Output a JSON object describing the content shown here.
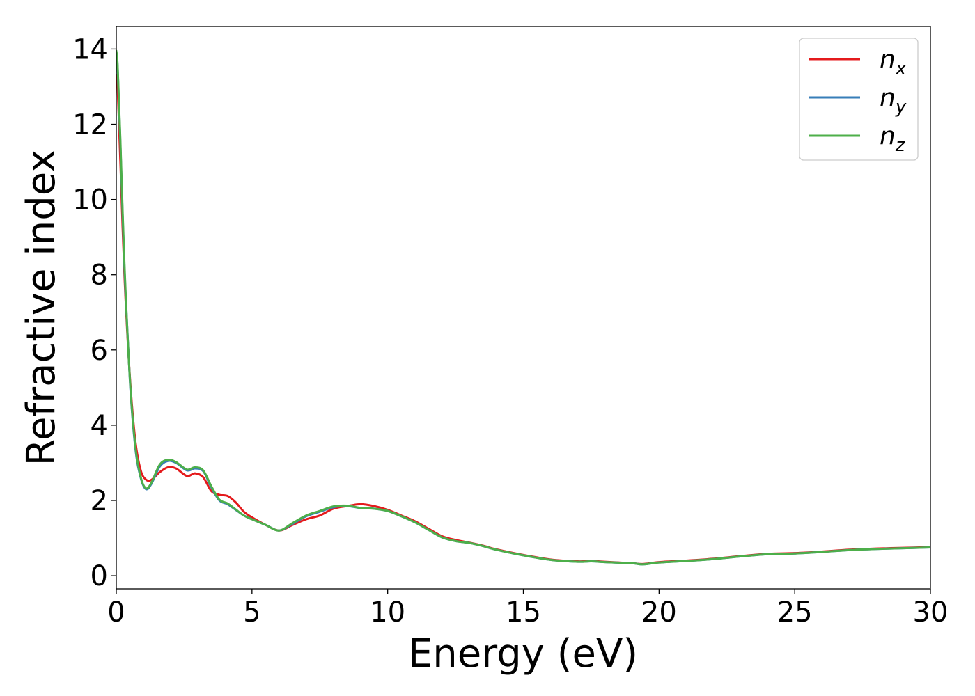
{
  "chart_data": {
    "type": "line",
    "title": "",
    "xlabel": "Energy (eV)",
    "ylabel": "Refractive index",
    "xlim": [
      0,
      30
    ],
    "ylim": [
      -0.35,
      14.6
    ],
    "x_ticks": [
      0,
      5,
      10,
      15,
      20,
      25,
      30
    ],
    "y_ticks": [
      0,
      2,
      4,
      6,
      8,
      10,
      12,
      14
    ],
    "grid": false,
    "legend_position": "top-right",
    "series": [
      {
        "name": "n",
        "subscript": "x",
        "color": "#e41a1c",
        "x": [
          0,
          0.05,
          0.15,
          0.3,
          0.5,
          0.7,
          0.9,
          1.1,
          1.3,
          1.6,
          1.9,
          2.2,
          2.6,
          2.9,
          3.2,
          3.5,
          3.8,
          4.1,
          4.4,
          4.7,
          5,
          5.5,
          6,
          6.5,
          7,
          7.5,
          8,
          8.5,
          9,
          9.5,
          10,
          10.5,
          11,
          11.5,
          12,
          12.5,
          13,
          13.5,
          14,
          15,
          16,
          17,
          17.5,
          18,
          19,
          19.4,
          20,
          21,
          22,
          23,
          24,
          25,
          26,
          27,
          28,
          29,
          30
        ],
        "y": [
          13.3,
          13.0,
          11.0,
          8.0,
          5.3,
          3.6,
          2.8,
          2.55,
          2.55,
          2.75,
          2.88,
          2.85,
          2.65,
          2.72,
          2.62,
          2.25,
          2.15,
          2.12,
          1.95,
          1.7,
          1.55,
          1.35,
          1.2,
          1.35,
          1.5,
          1.6,
          1.78,
          1.85,
          1.9,
          1.85,
          1.75,
          1.6,
          1.45,
          1.25,
          1.05,
          0.95,
          0.88,
          0.8,
          0.7,
          0.55,
          0.43,
          0.38,
          0.39,
          0.37,
          0.33,
          0.31,
          0.36,
          0.4,
          0.45,
          0.52,
          0.58,
          0.6,
          0.64,
          0.69,
          0.72,
          0.74,
          0.76
        ]
      },
      {
        "name": "n",
        "subscript": "y",
        "color": "#377eb8",
        "x": [
          0,
          0.05,
          0.15,
          0.3,
          0.5,
          0.7,
          0.9,
          1.1,
          1.3,
          1.6,
          1.9,
          2.2,
          2.6,
          2.9,
          3.2,
          3.5,
          3.8,
          4.1,
          4.4,
          4.7,
          5,
          5.5,
          6,
          6.5,
          7,
          7.5,
          8,
          8.5,
          9,
          9.5,
          10,
          10.5,
          11,
          11.5,
          12,
          12.5,
          13,
          13.5,
          14,
          15,
          16,
          17,
          17.5,
          18,
          19,
          19.4,
          20,
          21,
          22,
          23,
          24,
          25,
          26,
          27,
          28,
          29,
          30
        ],
        "y": [
          13.9,
          13.5,
          11.5,
          8.2,
          5.2,
          3.4,
          2.6,
          2.3,
          2.45,
          2.9,
          3.05,
          3.0,
          2.8,
          2.85,
          2.78,
          2.35,
          2.0,
          1.9,
          1.75,
          1.6,
          1.5,
          1.35,
          1.2,
          1.38,
          1.58,
          1.7,
          1.82,
          1.85,
          1.8,
          1.78,
          1.72,
          1.58,
          1.42,
          1.22,
          1.02,
          0.92,
          0.87,
          0.79,
          0.69,
          0.54,
          0.42,
          0.37,
          0.38,
          0.36,
          0.33,
          0.3,
          0.35,
          0.39,
          0.44,
          0.51,
          0.57,
          0.59,
          0.63,
          0.68,
          0.71,
          0.73,
          0.75
        ]
      },
      {
        "name": "n",
        "subscript": "z",
        "color": "#4daf4a",
        "x": [
          0,
          0.05,
          0.15,
          0.3,
          0.5,
          0.7,
          0.9,
          1.1,
          1.3,
          1.6,
          1.9,
          2.2,
          2.6,
          2.9,
          3.2,
          3.5,
          3.8,
          4.1,
          4.4,
          4.7,
          5,
          5.5,
          6,
          6.5,
          7,
          7.5,
          8,
          8.5,
          9,
          9.5,
          10,
          10.5,
          11,
          11.5,
          12,
          12.5,
          13,
          13.5,
          14,
          15,
          16,
          17,
          17.5,
          18,
          19,
          19.4,
          20,
          21,
          22,
          23,
          24,
          25,
          26,
          27,
          28,
          29,
          30
        ],
        "y": [
          13.95,
          13.55,
          11.6,
          8.3,
          5.25,
          3.45,
          2.62,
          2.32,
          2.48,
          2.95,
          3.08,
          3.02,
          2.82,
          2.88,
          2.8,
          2.38,
          2.02,
          1.92,
          1.76,
          1.6,
          1.5,
          1.35,
          1.2,
          1.4,
          1.6,
          1.72,
          1.84,
          1.86,
          1.8,
          1.78,
          1.72,
          1.58,
          1.42,
          1.22,
          1.02,
          0.92,
          0.87,
          0.79,
          0.69,
          0.54,
          0.42,
          0.37,
          0.38,
          0.36,
          0.33,
          0.3,
          0.35,
          0.39,
          0.44,
          0.51,
          0.57,
          0.59,
          0.63,
          0.68,
          0.71,
          0.73,
          0.75
        ]
      }
    ]
  }
}
